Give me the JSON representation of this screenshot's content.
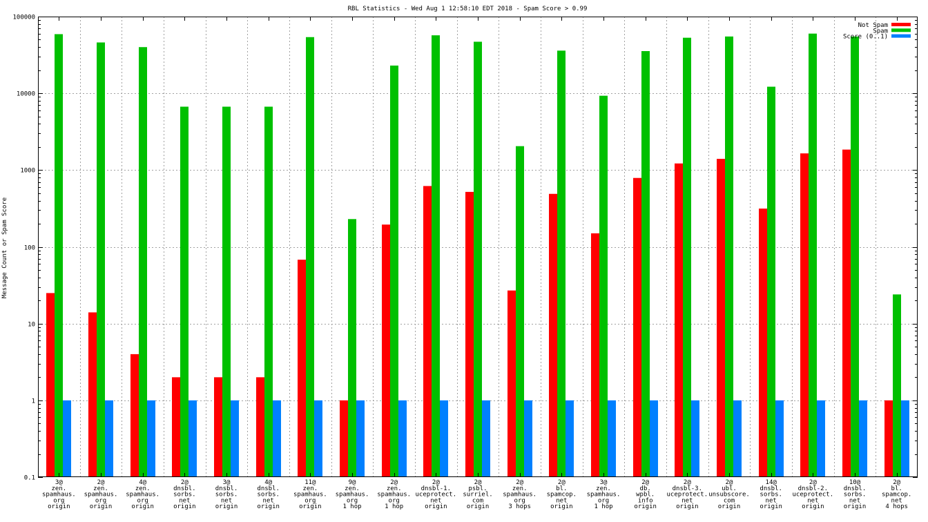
{
  "chart_data": {
    "type": "bar",
    "title": "RBL Statistics - Wed Aug  1 12:58:10 EDT 2018 - Spam Score > 0.99",
    "xlabel": "",
    "ylabel": "Message Count or Spam Score",
    "yscale": "log",
    "ylim": [
      0.1,
      100000
    ],
    "yticks": [
      "0.1",
      "1",
      "10",
      "100",
      "1000",
      "10000",
      "100000"
    ],
    "grid": true,
    "legend_position": "top-right",
    "categories": [
      [
        "3@",
        "zen.",
        "spamhaus.",
        "org",
        "origin"
      ],
      [
        "2@",
        "zen.",
        "spamhaus.",
        "org",
        "origin"
      ],
      [
        "4@",
        "zen.",
        "spamhaus.",
        "org",
        "origin"
      ],
      [
        "2@",
        "dnsbl.",
        "sorbs.",
        "net",
        "origin"
      ],
      [
        "3@",
        "dnsbl.",
        "sorbs.",
        "net",
        "origin"
      ],
      [
        "4@",
        "dnsbl.",
        "sorbs.",
        "net",
        "origin"
      ],
      [
        "11@",
        "zen.",
        "spamhaus.",
        "org",
        "origin"
      ],
      [
        "9@",
        "zen.",
        "spamhaus.",
        "org",
        "1 hop"
      ],
      [
        "2@",
        "zen.",
        "spamhaus.",
        "org",
        "1 hop"
      ],
      [
        "2@",
        "dnsbl-1.",
        "uceprotect.",
        "net",
        "origin"
      ],
      [
        "2@",
        "psbl.",
        "surriel.",
        "com",
        "origin"
      ],
      [
        "2@",
        "zen.",
        "spamhaus.",
        "org",
        "3 hops"
      ],
      [
        "2@",
        "bl.",
        "spamcop.",
        "net",
        "origin"
      ],
      [
        "3@",
        "zen.",
        "spamhaus.",
        "org",
        "1 hop"
      ],
      [
        "2@",
        "db.",
        "wpbl.",
        "info",
        "origin"
      ],
      [
        "2@",
        "dnsbl-3.",
        "uceprotect.",
        "net",
        "origin"
      ],
      [
        "2@",
        "ubl.",
        "unsubscore.",
        "com",
        "origin"
      ],
      [
        "14@",
        "dnsbl.",
        "sorbs.",
        "net",
        "origin"
      ],
      [
        "2@",
        "dnsbl-2.",
        "uceprotect.",
        "net",
        "origin"
      ],
      [
        "10@",
        "dnsbl.",
        "sorbs.",
        "net",
        "origin"
      ],
      [
        "2@",
        "bl.",
        "spamcop.",
        "net",
        "4 hops"
      ]
    ],
    "series": [
      {
        "name": "Not Spam",
        "color": "#ff0000",
        "values": [
          25,
          14,
          4,
          2,
          2,
          2,
          68,
          1,
          195,
          620,
          520,
          27,
          490,
          150,
          790,
          1220,
          1400,
          315,
          1650,
          1850,
          1
        ]
      },
      {
        "name": "Spam",
        "color": "#00c000",
        "values": [
          59000,
          46000,
          40000,
          6700,
          6700,
          6700,
          54000,
          230,
          23000,
          57000,
          47000,
          2050,
          36000,
          9300,
          35500,
          53000,
          55000,
          12200,
          60000,
          55000,
          24
        ]
      },
      {
        "name": "Score (0..1)",
        "color": "#0080ff",
        "values": [
          1,
          1,
          1,
          1,
          1,
          1,
          1,
          1,
          1,
          1,
          1,
          1,
          1,
          1,
          1,
          1,
          1,
          1,
          1,
          1,
          1
        ]
      }
    ]
  }
}
